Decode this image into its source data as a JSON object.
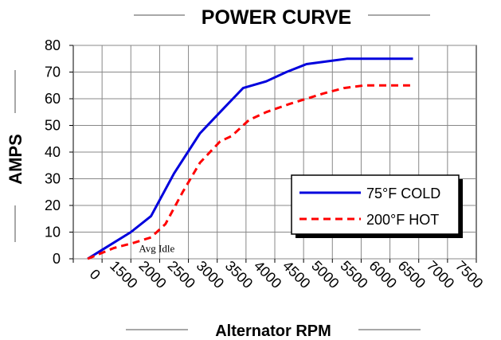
{
  "chart_data": {
    "type": "line",
    "title": "POWER CURVE",
    "xlabel": "Alternator RPM",
    "ylabel": "AMPS",
    "x_tick_labels": [
      "0",
      "1500",
      "2000",
      "2500",
      "3000",
      "3500",
      "4000",
      "4500",
      "5000",
      "5500",
      "6000",
      "6500",
      "7000",
      "7500"
    ],
    "ylim": [
      0,
      80
    ],
    "y_ticks": [
      0,
      10,
      20,
      30,
      40,
      50,
      60,
      70,
      80
    ],
    "grid": true,
    "legend_position": "bottom-right",
    "series": [
      {
        "name": "75°F COLD",
        "color": "#0000dd",
        "style": "solid",
        "points": [
          [
            0,
            0
          ],
          [
            1.5,
            10
          ],
          [
            2.2,
            16
          ],
          [
            3.0,
            32
          ],
          [
            3.9,
            47
          ],
          [
            4.6,
            55
          ],
          [
            5.4,
            64
          ],
          [
            6.2,
            66.5
          ],
          [
            6.9,
            70
          ],
          [
            7.6,
            73
          ],
          [
            8.3,
            74
          ],
          [
            9.0,
            75
          ],
          [
            9.8,
            75
          ],
          [
            10.6,
            75
          ],
          [
            11.3,
            75
          ]
        ]
      },
      {
        "name": "200°F HOT",
        "color": "#ff0000",
        "style": "dashed",
        "points": [
          [
            0,
            0
          ],
          [
            0.9,
            4
          ],
          [
            1.6,
            6
          ],
          [
            2.2,
            8
          ],
          [
            2.7,
            13
          ],
          [
            3.3,
            25
          ],
          [
            3.9,
            36
          ],
          [
            4.6,
            44
          ],
          [
            5.0,
            46
          ],
          [
            5.6,
            52
          ],
          [
            6.2,
            55
          ],
          [
            7.0,
            58
          ],
          [
            7.6,
            60
          ],
          [
            8.2,
            62
          ],
          [
            8.9,
            64
          ],
          [
            9.6,
            65
          ],
          [
            10.4,
            65
          ],
          [
            11.2,
            65
          ]
        ]
      }
    ],
    "annotations": [
      {
        "text": "Avg Idle",
        "x": 2.4,
        "y": 2.5
      }
    ]
  }
}
